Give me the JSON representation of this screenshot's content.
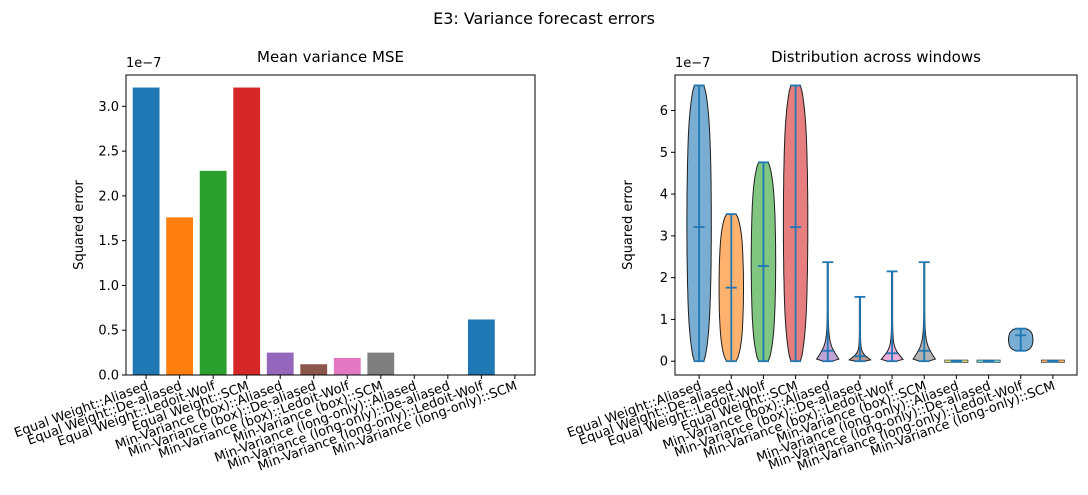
{
  "figure_title": "E3: Variance forecast errors",
  "chart_data": [
    {
      "type": "bar",
      "title": "Mean variance MSE",
      "xlabel": "",
      "ylabel": "Squared error",
      "y_offset_label": "1e−7",
      "ylim": [
        0,
        3.35
      ],
      "yticks": [
        "0.0",
        "0.5",
        "1.0",
        "1.5",
        "2.0",
        "2.5",
        "3.0"
      ],
      "ytick_values": [
        0,
        0.5,
        1.0,
        1.5,
        2.0,
        2.5,
        3.0
      ],
      "grid": false,
      "categories": [
        "Equal Weight::Aliased",
        "Equal Weight::De-aliased",
        "Equal Weight::Ledoit-Wolf",
        "Equal Weight::SCM",
        "Min-Variance (box)::Aliased",
        "Min-Variance (box)::De-aliased",
        "Min-Variance (box)::Ledoit-Wolf",
        "Min-Variance (box)::SCM",
        "Min-Variance (long-only)::Aliased",
        "Min-Variance (long-only)::De-aliased",
        "Min-Variance (long-only)::Ledoit-Wolf",
        "Min-Variance (long-only)::SCM"
      ],
      "values": [
        3.21,
        1.76,
        2.28,
        3.21,
        0.25,
        0.12,
        0.19,
        0.25,
        0.0,
        0.0,
        0.62,
        0.0
      ],
      "colors": [
        "#1f77b4",
        "#ff7f0e",
        "#2ca02c",
        "#d62728",
        "#9467bd",
        "#8c564b",
        "#e377c2",
        "#7f7f7f",
        "#bcbd22",
        "#17becf",
        "#1f77b4",
        "#ff7f0e"
      ]
    },
    {
      "type": "violin",
      "title": "Distribution across windows",
      "xlabel": "",
      "ylabel": "Squared error",
      "y_offset_label": "1e−7",
      "ylim": [
        -0.33,
        6.85
      ],
      "yticks": [
        "0",
        "1",
        "2",
        "3",
        "4",
        "5",
        "6"
      ],
      "ytick_values": [
        0,
        1,
        2,
        3,
        4,
        5,
        6
      ],
      "grid": false,
      "categories": [
        "Equal Weight::Aliased",
        "Equal Weight::De-aliased",
        "Equal Weight::Ledoit-Wolf",
        "Equal Weight::SCM",
        "Min-Variance (box)::Aliased",
        "Min-Variance (box)::De-aliased",
        "Min-Variance (box)::Ledoit-Wolf",
        "Min-Variance (box)::SCM",
        "Min-Variance (long-only)::Aliased",
        "Min-Variance (long-only)::De-aliased",
        "Min-Variance (long-only)::Ledoit-Wolf",
        "Min-Variance (long-only)::SCM"
      ],
      "series": [
        {
          "min": 0.0,
          "max": 6.6,
          "mean": 3.21
        },
        {
          "min": 0.0,
          "max": 3.52,
          "mean": 1.76
        },
        {
          "min": 0.0,
          "max": 4.76,
          "mean": 2.28
        },
        {
          "min": 0.0,
          "max": 6.6,
          "mean": 3.21
        },
        {
          "min": 0.0,
          "max": 2.37,
          "mean": 0.25
        },
        {
          "min": 0.0,
          "max": 1.54,
          "mean": 0.12
        },
        {
          "min": 0.0,
          "max": 2.15,
          "mean": 0.19
        },
        {
          "min": 0.0,
          "max": 2.37,
          "mean": 0.25
        },
        {
          "min": -0.01,
          "max": 0.01,
          "mean": 0.0
        },
        {
          "min": -0.01,
          "max": 0.01,
          "mean": 0.0
        },
        {
          "min": 0.25,
          "max": 0.78,
          "mean": 0.62
        },
        {
          "min": -0.01,
          "max": 0.01,
          "mean": 0.0
        }
      ],
      "colors": [
        "#1f77b4",
        "#ff7f0e",
        "#2ca02c",
        "#d62728",
        "#9467bd",
        "#8c564b",
        "#e377c2",
        "#7f7f7f",
        "#bcbd22",
        "#17becf",
        "#1f77b4",
        "#ff7f0e"
      ],
      "stat_color": "#1f77b4"
    }
  ]
}
